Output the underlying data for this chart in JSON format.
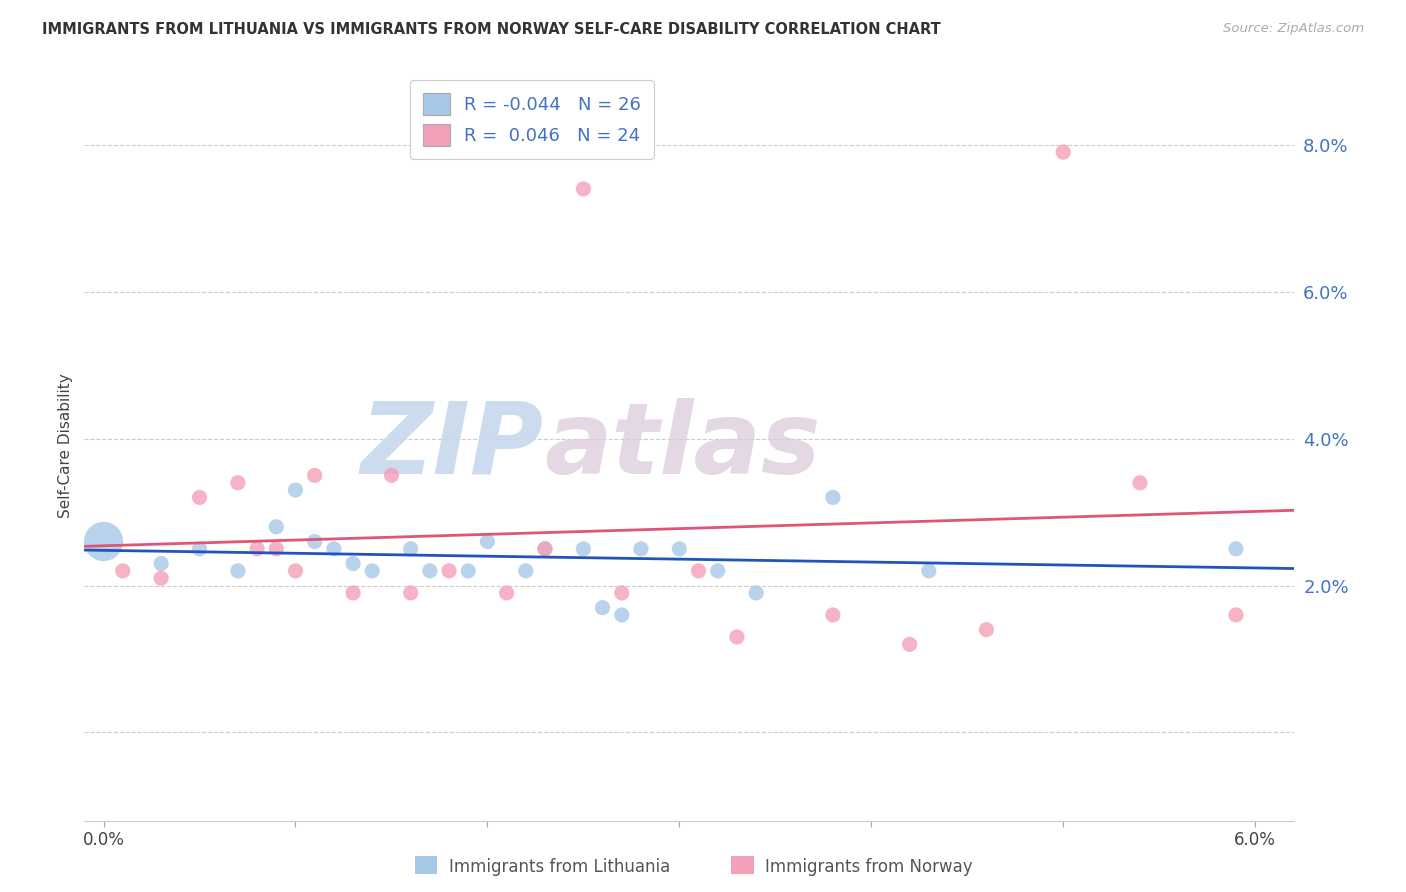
{
  "title": "IMMIGRANTS FROM LITHUANIA VS IMMIGRANTS FROM NORWAY SELF-CARE DISABILITY CORRELATION CHART",
  "source": "Source: ZipAtlas.com",
  "ylabel": "Self-Care Disability",
  "xlim": [
    -0.001,
    0.062
  ],
  "ylim": [
    -0.012,
    0.09
  ],
  "yticks": [
    0.0,
    0.02,
    0.04,
    0.06,
    0.08
  ],
  "ytick_labels": [
    "",
    "2.0%",
    "4.0%",
    "6.0%",
    "8.0%"
  ],
  "xticks": [
    0.0,
    0.01,
    0.02,
    0.03,
    0.04,
    0.05,
    0.06
  ],
  "xtick_labels": [
    "0.0%",
    "",
    "",
    "",
    "",
    "",
    "6.0%"
  ],
  "legend_R1": "-0.044",
  "legend_N1": "26",
  "legend_R2": "0.046",
  "legend_N2": "24",
  "legend_label1": "Immigrants from Lithuania",
  "legend_label2": "Immigrants from Norway",
  "color_lithuania": "#a8c8e8",
  "color_norway": "#f4a0b8",
  "color_trendline_lithuania": "#2255bb",
  "color_trendline_norway": "#e05575",
  "watermark_zip": "ZIP",
  "watermark_atlas": "atlas",
  "lithuania_x": [
    0.0,
    0.003,
    0.005,
    0.007,
    0.009,
    0.01,
    0.011,
    0.012,
    0.013,
    0.014,
    0.016,
    0.017,
    0.019,
    0.02,
    0.022,
    0.023,
    0.025,
    0.026,
    0.027,
    0.028,
    0.03,
    0.032,
    0.034,
    0.038,
    0.043,
    0.059
  ],
  "lithuania_y": [
    0.026,
    0.023,
    0.025,
    0.022,
    0.028,
    0.033,
    0.026,
    0.025,
    0.023,
    0.022,
    0.025,
    0.022,
    0.022,
    0.026,
    0.022,
    0.025,
    0.025,
    0.017,
    0.016,
    0.025,
    0.025,
    0.022,
    0.019,
    0.032,
    0.022,
    0.025
  ],
  "lithuania_sizes": [
    800,
    120,
    120,
    120,
    120,
    120,
    120,
    120,
    120,
    120,
    120,
    120,
    120,
    120,
    120,
    120,
    120,
    120,
    120,
    120,
    120,
    120,
    120,
    120,
    120,
    120
  ],
  "norway_x": [
    0.001,
    0.003,
    0.005,
    0.007,
    0.008,
    0.009,
    0.01,
    0.011,
    0.013,
    0.015,
    0.016,
    0.018,
    0.021,
    0.023,
    0.025,
    0.027,
    0.031,
    0.033,
    0.038,
    0.042,
    0.046,
    0.05,
    0.054,
    0.059
  ],
  "norway_y": [
    0.022,
    0.021,
    0.032,
    0.034,
    0.025,
    0.025,
    0.022,
    0.035,
    0.019,
    0.035,
    0.019,
    0.022,
    0.019,
    0.025,
    0.074,
    0.019,
    0.022,
    0.013,
    0.016,
    0.012,
    0.014,
    0.079,
    0.034,
    0.016
  ],
  "norway_sizes": [
    120,
    120,
    120,
    120,
    120,
    120,
    120,
    120,
    120,
    120,
    120,
    120,
    120,
    120,
    120,
    120,
    120,
    120,
    120,
    120,
    120,
    120,
    120,
    120
  ]
}
